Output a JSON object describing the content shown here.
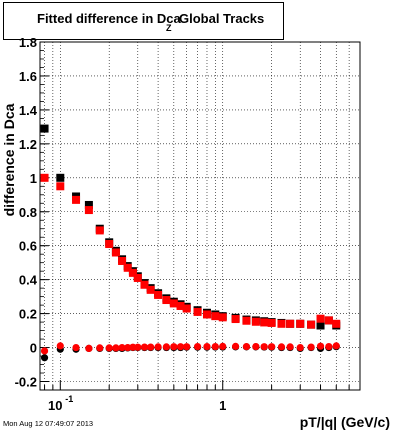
{
  "title": {
    "main": "Fitted difference in Dca",
    "subscript": "Z",
    "rest": "Global Tracks"
  },
  "footer": "Mon Aug 12 07:49:07 2013",
  "colors": {
    "series_black": "#000000",
    "series_red": "#ff0000",
    "grid": "#000000"
  },
  "chart_data": {
    "type": "scatter",
    "title": "Fitted difference in Dca_Z Global Tracks",
    "xlabel": "pT/|q| (GeV/c)",
    "ylabel": "difference in Dca",
    "x_scale": "log",
    "xlim": [
      0.075,
      7.0
    ],
    "ylim": [
      -0.25,
      1.8
    ],
    "grid": true,
    "x_ticks": [
      {
        "value": 0.1,
        "base": "10",
        "exp": "-1"
      },
      {
        "value": 1,
        "base": "1",
        "exp": ""
      }
    ],
    "y_ticks": [
      {
        "value": -0.2,
        "label": "-0.2"
      },
      {
        "value": 0,
        "label": "0"
      },
      {
        "value": 0.2,
        "label": "0.2"
      },
      {
        "value": 0.4,
        "label": "0.4"
      },
      {
        "value": 0.6,
        "label": "0.6"
      },
      {
        "value": 0.8,
        "label": "0.8"
      },
      {
        "value": 1,
        "label": "1"
      },
      {
        "value": 1.2,
        "label": "1.2"
      },
      {
        "value": 1.4,
        "label": "1.4"
      },
      {
        "value": 1.6,
        "label": "1.6"
      },
      {
        "value": 1.8,
        "label": "1.8"
      }
    ],
    "series": [
      {
        "marker": "square",
        "color": "#000000",
        "x": [
          0.08,
          0.1,
          0.125,
          0.15,
          0.175,
          0.2,
          0.22,
          0.24,
          0.26,
          0.28,
          0.3,
          0.33,
          0.36,
          0.4,
          0.45,
          0.5,
          0.55,
          0.6,
          0.7,
          0.8,
          0.9,
          1.0,
          1.2,
          1.4,
          1.6,
          1.8,
          2.0,
          2.3,
          2.6,
          3.0,
          3.5,
          4.0,
          4.5,
          5.0
        ],
        "y": [
          1.29,
          1.0,
          0.89,
          0.84,
          0.7,
          0.62,
          0.57,
          0.52,
          0.48,
          0.45,
          0.42,
          0.38,
          0.35,
          0.32,
          0.29,
          0.27,
          0.255,
          0.24,
          0.22,
          0.205,
          0.195,
          0.185,
          0.175,
          0.165,
          0.16,
          0.155,
          0.15,
          0.145,
          0.14,
          0.14,
          0.135,
          0.13,
          0.16,
          0.13
        ]
      },
      {
        "marker": "square",
        "color": "#ff0000",
        "x": [
          0.08,
          0.1,
          0.125,
          0.15,
          0.175,
          0.2,
          0.22,
          0.24,
          0.26,
          0.28,
          0.3,
          0.33,
          0.36,
          0.4,
          0.45,
          0.5,
          0.55,
          0.6,
          0.7,
          0.8,
          0.9,
          1.0,
          1.2,
          1.4,
          1.6,
          1.8,
          2.0,
          2.3,
          2.6,
          3.0,
          3.5,
          4.0,
          4.5,
          5.0
        ],
        "y": [
          1.0,
          0.95,
          0.87,
          0.81,
          0.69,
          0.61,
          0.56,
          0.51,
          0.47,
          0.44,
          0.41,
          0.37,
          0.34,
          0.31,
          0.28,
          0.26,
          0.245,
          0.23,
          0.21,
          0.195,
          0.185,
          0.178,
          0.168,
          0.158,
          0.152,
          0.148,
          0.145,
          0.14,
          0.14,
          0.14,
          0.135,
          0.17,
          0.16,
          0.14
        ]
      },
      {
        "marker": "circle",
        "color": "#000000",
        "x": [
          0.08,
          0.1,
          0.125,
          0.15,
          0.175,
          0.2,
          0.22,
          0.24,
          0.26,
          0.28,
          0.3,
          0.33,
          0.36,
          0.4,
          0.45,
          0.5,
          0.55,
          0.6,
          0.7,
          0.8,
          0.9,
          1.0,
          1.2,
          1.4,
          1.6,
          1.8,
          2.0,
          2.3,
          2.6,
          3.0,
          3.5,
          4.0,
          4.5,
          5.0
        ],
        "y": [
          -0.06,
          -0.01,
          -0.01,
          -0.005,
          -0.005,
          -0.005,
          -0.005,
          -0.005,
          -0.002,
          0.0,
          0.0,
          0.0,
          0.0,
          0.0,
          0.0,
          0.0,
          0.0,
          0.002,
          0.002,
          0.002,
          0.003,
          0.003,
          0.004,
          0.004,
          0.004,
          0.003,
          0.002,
          0.0,
          0.0,
          -0.005,
          0.0,
          -0.005,
          0.0,
          0.005
        ]
      },
      {
        "marker": "circle",
        "color": "#ff0000",
        "x": [
          0.08,
          0.1,
          0.125,
          0.15,
          0.175,
          0.2,
          0.22,
          0.24,
          0.26,
          0.28,
          0.3,
          0.33,
          0.36,
          0.4,
          0.45,
          0.5,
          0.55,
          0.6,
          0.7,
          0.8,
          0.9,
          1.0,
          1.2,
          1.4,
          1.6,
          1.8,
          2.0,
          2.3,
          2.6,
          3.0,
          3.5,
          4.0,
          4.5,
          5.0
        ],
        "y": [
          -0.02,
          0.01,
          0.0,
          -0.005,
          -0.002,
          -0.002,
          -0.002,
          0.0,
          0.0,
          0.002,
          0.002,
          0.003,
          0.003,
          0.004,
          0.004,
          0.005,
          0.005,
          0.005,
          0.006,
          0.006,
          0.006,
          0.007,
          0.007,
          0.006,
          0.006,
          0.005,
          0.005,
          0.004,
          0.004,
          0.0,
          0.003,
          0.008,
          0.006,
          0.01
        ]
      }
    ]
  }
}
